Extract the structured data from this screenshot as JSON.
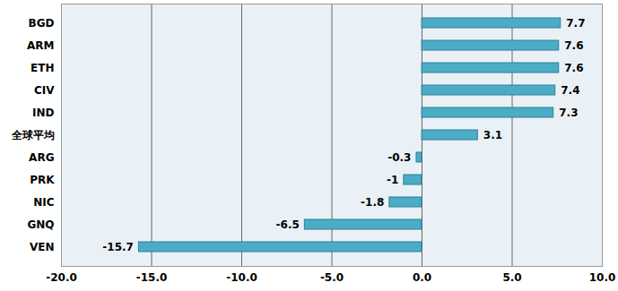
{
  "chart_data": {
    "type": "bar",
    "orientation": "horizontal",
    "categories": [
      "BGD",
      "ARM",
      "ETH",
      "CIV",
      "IND",
      "全球平均",
      "ARG",
      "PRK",
      "NIC",
      "GNQ",
      "VEN"
    ],
    "values": [
      7.7,
      7.6,
      7.6,
      7.4,
      7.3,
      3.1,
      -0.3,
      -1.0,
      -1.8,
      -6.5,
      -15.7
    ],
    "color": "#4bacc6",
    "xlim": [
      -20,
      10
    ],
    "xticks": [
      {
        "value": -20,
        "label": "-20.0"
      },
      {
        "value": -15,
        "label": "-15.0"
      },
      {
        "value": -10,
        "label": "-10.0"
      },
      {
        "value": -5,
        "label": "-5.0"
      },
      {
        "value": 0,
        "label": "0.0"
      },
      {
        "value": 5,
        "label": "5.0"
      },
      {
        "value": 10,
        "label": "10.0"
      }
    ],
    "grid": true,
    "data_labels": true
  }
}
